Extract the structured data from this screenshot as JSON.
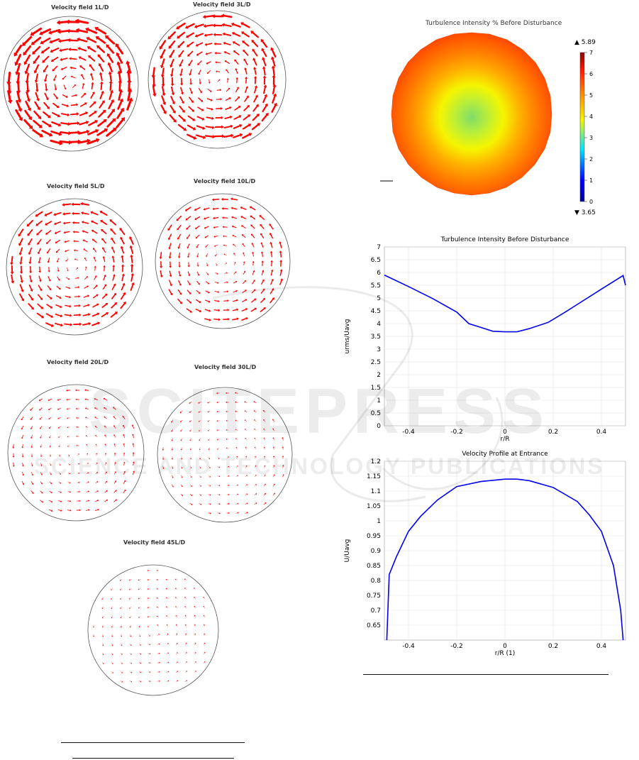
{
  "velocity_fields": [
    {
      "id": "1",
      "title": "Velocity field 1L/D",
      "strength": 1.0
    },
    {
      "id": "3",
      "title": "Velocity field 3L/D",
      "strength": 0.8
    },
    {
      "id": "5",
      "title": "Velocity field 5L/D",
      "strength": 0.65
    },
    {
      "id": "10",
      "title": "Velocity field 10L/D",
      "strength": 0.5
    },
    {
      "id": "20",
      "title": "Velocity field 20L/D",
      "strength": 0.28
    },
    {
      "id": "30",
      "title": "Velocity field 30L/D",
      "strength": 0.2
    },
    {
      "id": "45",
      "title": "Velocity field 45L/D",
      "strength": 0.08
    }
  ],
  "arrow_color": "#ff0000",
  "ti_map": {
    "title": "Turbulence Intensity % Before Disturbance",
    "max_label": "▲ 5.89",
    "min_label": "▼ 3.65",
    "colorbar_ticks": [
      "7",
      "6",
      "5",
      "4",
      "3",
      "2",
      "1",
      "0"
    ]
  },
  "watermark": {
    "line1": "SCITEPRESS",
    "line2": "SCIENCE AND TECHNOLOGY PUBLICATIONS"
  },
  "chart_data": [
    {
      "type": "line",
      "title": "Turbulence Intensity Before Disturbance",
      "xlabel": "r/R",
      "ylabel": "urms/Uavg",
      "xlim": [
        -0.5,
        0.5
      ],
      "ylim": [
        0,
        7
      ],
      "xticks": [
        "-0.4",
        "-0.2",
        "0",
        "0.2",
        "0.4"
      ],
      "yticks": [
        "0",
        "0.5",
        "1",
        "1.5",
        "2",
        "2.5",
        "3",
        "3.5",
        "4",
        "4.5",
        "5",
        "5.5",
        "6",
        "6.5",
        "7"
      ],
      "grid": true,
      "color": "#0000ee",
      "x": [
        -0.5,
        -0.4,
        -0.3,
        -0.2,
        -0.15,
        -0.1,
        -0.05,
        0,
        0.05,
        0.1,
        0.18,
        0.25,
        0.3,
        0.4,
        0.49,
        0.5
      ],
      "y": [
        5.9,
        5.45,
        4.98,
        4.45,
        4.0,
        3.85,
        3.7,
        3.68,
        3.68,
        3.8,
        4.05,
        4.45,
        4.75,
        5.35,
        5.88,
        5.5
      ]
    },
    {
      "type": "line",
      "title": "Velocity Profile at Entrance",
      "xlabel": "r/R (1)",
      "ylabel": "U/Uavg",
      "xlim": [
        -0.5,
        0.5
      ],
      "ylim": [
        0.6,
        1.2
      ],
      "xticks": [
        "-0.4",
        "-0.2",
        "0",
        "0.2",
        "0.4"
      ],
      "yticks": [
        "0.65",
        "0.7",
        "0.75",
        "0.8",
        "0.85",
        "0.9",
        "0.95",
        "1",
        "1.05",
        "1.1",
        "1.15",
        "1.2"
      ],
      "grid": true,
      "color": "#0000ee",
      "x": [
        -0.49,
        -0.48,
        -0.45,
        -0.4,
        -0.35,
        -0.28,
        -0.2,
        -0.1,
        0,
        0.05,
        0.1,
        0.2,
        0.3,
        0.35,
        0.4,
        0.45,
        0.48,
        0.49
      ],
      "y": [
        0.6,
        0.82,
        0.88,
        0.965,
        1.015,
        1.07,
        1.115,
        1.132,
        1.14,
        1.14,
        1.135,
        1.112,
        1.065,
        1.02,
        0.965,
        0.85,
        0.7,
        0.6
      ]
    }
  ]
}
